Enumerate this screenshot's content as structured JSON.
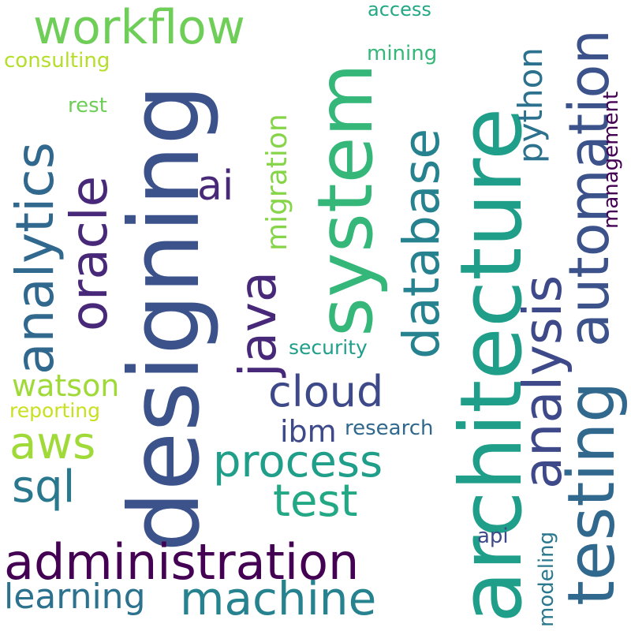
{
  "words": [
    {
      "text": "architecture",
      "color": "#1f9e89"
    },
    {
      "text": "designing",
      "color": "#3b528b"
    },
    {
      "text": "system",
      "color": "#35b779"
    },
    {
      "text": "administration",
      "color": "#440154"
    },
    {
      "text": "workflow",
      "color": "#6ece58"
    },
    {
      "text": "testing",
      "color": "#31688e"
    },
    {
      "text": "analytics",
      "color": "#31688e"
    },
    {
      "text": "automation",
      "color": "#3b528b"
    },
    {
      "text": "machine",
      "color": "#26828e"
    },
    {
      "text": "process",
      "color": "#1f9e89"
    },
    {
      "text": "database",
      "color": "#26828e"
    },
    {
      "text": "oracle",
      "color": "#482878"
    },
    {
      "text": "analysis",
      "color": "#3e4989"
    },
    {
      "text": "java",
      "color": "#482878"
    },
    {
      "text": "cloud",
      "color": "#3e4989"
    },
    {
      "text": "test",
      "color": "#22a884"
    },
    {
      "text": "aws",
      "color": "#a0da39"
    },
    {
      "text": "sql",
      "color": "#2a788e"
    },
    {
      "text": "learning",
      "color": "#2c728e"
    },
    {
      "text": "ai",
      "color": "#482878"
    },
    {
      "text": "watson",
      "color": "#a0da39"
    },
    {
      "text": "python",
      "color": "#2c728e"
    },
    {
      "text": "migration",
      "color": "#86d549"
    },
    {
      "text": "ibm",
      "color": "#3e4989"
    },
    {
      "text": "research",
      "color": "#31688e"
    },
    {
      "text": "security",
      "color": "#1f9e89"
    },
    {
      "text": "consulting",
      "color": "#b5de2b"
    },
    {
      "text": "reporting",
      "color": "#c8e020"
    },
    {
      "text": "management",
      "color": "#440154"
    },
    {
      "text": "mining",
      "color": "#35b779"
    },
    {
      "text": "access",
      "color": "#22a884"
    },
    {
      "text": "rest",
      "color": "#6ece58"
    },
    {
      "text": "modeling",
      "color": "#2a788e"
    },
    {
      "text": "api",
      "color": "#3e4989"
    }
  ]
}
